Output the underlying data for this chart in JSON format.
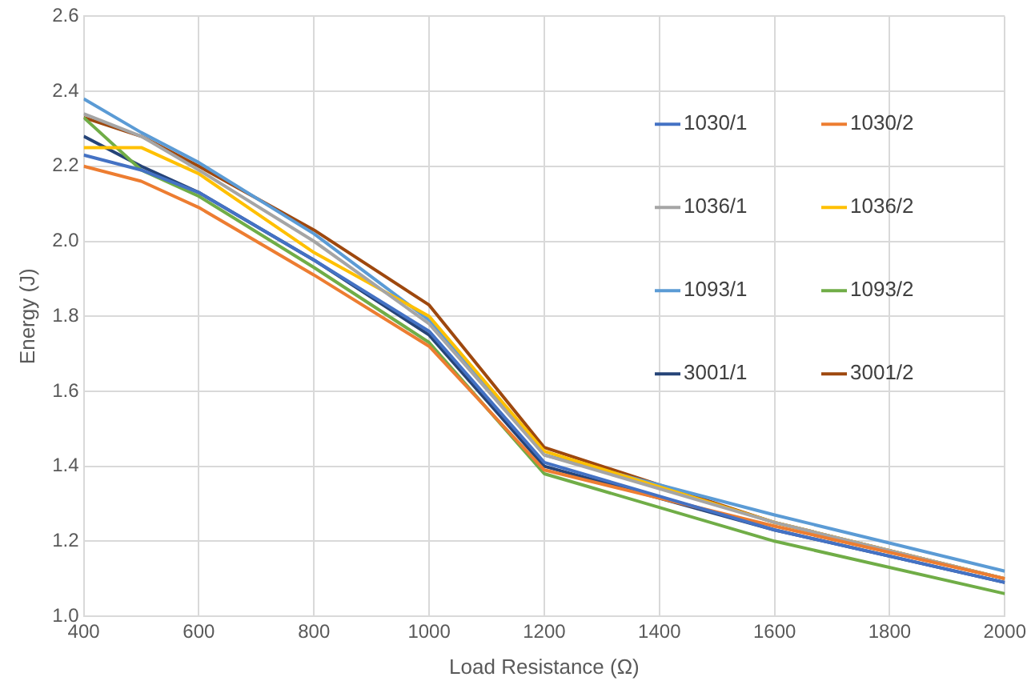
{
  "chart_data": {
    "type": "line",
    "xlabel": "Load Resistance (Ω)",
    "ylabel": "Energy (J)",
    "x": [
      400,
      500,
      600,
      800,
      1000,
      1200,
      1600,
      2000
    ],
    "xlim": [
      400,
      2000
    ],
    "xticks": [
      400,
      600,
      800,
      1000,
      1200,
      1400,
      1600,
      1800,
      2000
    ],
    "ylim": [
      1.0,
      2.6
    ],
    "yticks": [
      {
        "value": 1.0,
        "label": "1.0"
      },
      1.2,
      1.4,
      1.6,
      1.8,
      {
        "value": 2.0,
        "label": "2.0"
      },
      2.2,
      2.4,
      2.6
    ],
    "grid": true,
    "legend": "right",
    "marker": "none",
    "line_style": "solid",
    "series": [
      {
        "name": "1030/1",
        "color": "#4472c4",
        "values": [
          2.23,
          2.19,
          2.13,
          1.95,
          1.76,
          1.41,
          1.23,
          1.09
        ]
      },
      {
        "name": "1030/2",
        "color": "#ed7d31",
        "values": [
          2.2,
          2.16,
          2.09,
          1.91,
          1.72,
          1.39,
          1.24,
          1.1
        ]
      },
      {
        "name": "1036/1",
        "color": "#a5a5a5",
        "values": [
          2.34,
          2.28,
          2.19,
          2.0,
          1.78,
          1.43,
          1.25,
          1.1
        ]
      },
      {
        "name": "1036/2",
        "color": "#ffc000",
        "values": [
          2.25,
          2.25,
          2.18,
          1.97,
          1.8,
          1.44,
          1.25,
          1.1
        ]
      },
      {
        "name": "1093/1",
        "color": "#5b9bd5",
        "values": [
          2.38,
          2.29,
          2.21,
          2.02,
          1.79,
          1.43,
          1.27,
          1.12
        ]
      },
      {
        "name": "1093/2",
        "color": "#70ad47",
        "values": [
          2.33,
          2.19,
          2.12,
          1.93,
          1.73,
          1.38,
          1.2,
          1.06
        ]
      },
      {
        "name": "3001/1",
        "color": "#264478",
        "values": [
          2.28,
          2.2,
          2.13,
          1.95,
          1.75,
          1.4,
          1.23,
          1.09
        ]
      },
      {
        "name": "3001/2",
        "color": "#9e480e",
        "values": [
          2.33,
          2.28,
          2.2,
          2.03,
          1.83,
          1.45,
          1.25,
          1.1
        ]
      }
    ]
  }
}
